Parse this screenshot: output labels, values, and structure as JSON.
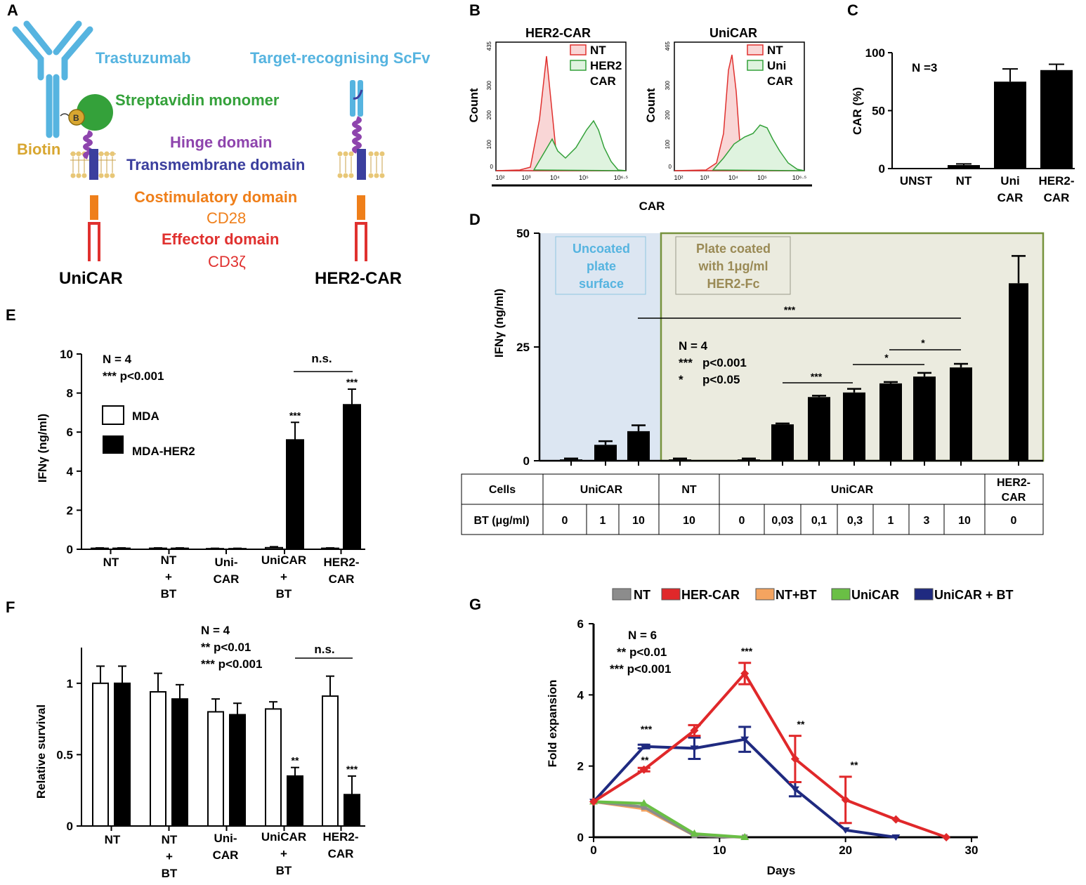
{
  "panel_labels": {
    "A": "A",
    "B": "B",
    "C": "C",
    "D": "D",
    "E": "E",
    "F": "F",
    "G": "G"
  },
  "panelA": {
    "trastuzumab": "Trastuzumab",
    "scfv": "Target-recognising ScFv",
    "streptavidin": "Streptavidin monomer",
    "biotin": "Biotin",
    "biotin_badge": "B",
    "hinge": "Hinge domain",
    "transmembrane": "Transmembrane domain",
    "costim": "Costimulatory domain",
    "cd28": "CD28",
    "effector": "Effector domain",
    "cd3z": "CD3ζ",
    "unicar": "UniCAR",
    "her2car": "HER2-CAR",
    "colors": {
      "antibody": "#56b4e0",
      "streptavidin": "#34a13a",
      "biotin": "#d8a630",
      "hinge": "#8e44ad",
      "transmembrane": "#3b3f9e",
      "costim": "#ef7f1a",
      "effector": "#e0312f",
      "membrane": "#d9b45a"
    }
  },
  "panelB": {
    "count_label": "Count",
    "x_label": "CAR",
    "x_ticks": [
      "10²",
      "10³",
      "10⁴",
      "10⁵",
      "10⁶·⁵"
    ],
    "plots": [
      {
        "title": "HER2-CAR",
        "ymax": "435",
        "legend_nt": "NT",
        "legend_car": [
          "HER2",
          "CAR"
        ]
      },
      {
        "title": "UniCAR",
        "ymax": "465",
        "legend_nt": "NT",
        "legend_car": [
          "Uni",
          "CAR"
        ]
      }
    ],
    "y_ticks": [
      "0",
      "100",
      "200",
      "300"
    ]
  },
  "panelC": {
    "ylabel": "CAR (%)",
    "n_label": "N =3",
    "y_ticks": [
      "0",
      "50",
      "100"
    ],
    "cat_lines": [
      [
        "UNST"
      ],
      [
        "NT"
      ],
      [
        "Uni",
        "CAR"
      ],
      [
        "HER2-",
        "CAR"
      ]
    ]
  },
  "panelD": {
    "ylabel": "IFNγ (ng/ml)",
    "y_ticks": [
      "0",
      "25",
      "50"
    ],
    "box_uncoated": [
      "Uncoated",
      "plate",
      "surface"
    ],
    "box_coated": [
      "Plate coated",
      "with  1μg/ml",
      "HER2-Fc"
    ],
    "stats": {
      "n": "N = 4",
      "p1_star": "***",
      "p1": "p<0.001",
      "p2_star": "*",
      "p2": "p<0.05"
    },
    "sig": [
      "***",
      "***",
      "*",
      "*"
    ],
    "table": {
      "cells_label": "Cells",
      "bt_label": "BT (μg/ml)",
      "groups": [
        "UniCAR",
        "NT",
        "UniCAR"
      ],
      "her2_lines": [
        "HER2-",
        "CAR"
      ],
      "bt_values": [
        "0",
        "1",
        "10",
        "10",
        "0",
        "0,03",
        "0,1",
        "0,3",
        "1",
        "3",
        "10",
        "0"
      ]
    }
  },
  "panelE": {
    "ylabel": "IFNγ (ng/ml)",
    "n_label": "N = 4",
    "p_label": "*** p<0.001",
    "legend": [
      "MDA",
      "MDA-HER2"
    ],
    "y_ticks": [
      "0",
      "2",
      "4",
      "6",
      "8",
      "10"
    ],
    "cat_lines": [
      [
        "NT"
      ],
      [
        "NT",
        "+",
        "BT"
      ],
      [
        "Uni-",
        "CAR"
      ],
      [
        "UniCAR",
        "+",
        "BT"
      ],
      [
        "HER2-",
        "CAR"
      ]
    ],
    "ns": "n.s.",
    "stars": [
      "***",
      "***"
    ]
  },
  "panelF": {
    "ylabel": "Relative survival",
    "n_label": "N = 4",
    "p1": "** p<0.01",
    "p2": "*** p<0.001",
    "y_ticks": [
      "0",
      "0.5",
      "1"
    ],
    "cat_lines": [
      [
        "NT"
      ],
      [
        "NT",
        "+",
        "BT"
      ],
      [
        "Uni-",
        "CAR"
      ],
      [
        "UniCAR",
        "+",
        "BT"
      ],
      [
        "HER2-",
        "CAR"
      ]
    ],
    "ns": "n.s.",
    "stars": [
      "**",
      "***"
    ]
  },
  "panelG": {
    "xlabel": "Days",
    "ylabel": "Fold expansion",
    "n_label": "N = 6",
    "p1": "** p<0.01",
    "p2": "*** p<0.001",
    "x_ticks": [
      "0",
      "10",
      "20",
      "30"
    ],
    "y_ticks": [
      "0",
      "2",
      "4",
      "6"
    ],
    "legend": [
      "NT",
      "HER-CAR",
      "NT+BT",
      "UniCAR",
      "UniCAR + BT"
    ],
    "colors": [
      "#8c8c8c",
      "#e0282a",
      "#f4a460",
      "#6abf45",
      "#1f2a80"
    ],
    "annotations": [
      "***",
      "**",
      "***",
      "**",
      "**"
    ]
  },
  "chart_data": [
    {
      "type": "bar",
      "panel": "C",
      "title": "",
      "ylabel": "CAR (%)",
      "ylim": [
        0,
        100
      ],
      "categories": [
        "UNST",
        "NT",
        "Uni CAR",
        "HER2-CAR"
      ],
      "values": [
        0.5,
        3,
        75,
        85
      ],
      "errors": [
        0,
        1,
        11,
        5
      ]
    },
    {
      "type": "bar",
      "panel": "D",
      "ylabel": "IFNγ (ng/ml)",
      "ylim": [
        0,
        50
      ],
      "categories": [
        "UniCAR 0",
        "UniCAR 1",
        "UniCAR 10",
        "NT 10",
        "UniCAR 0",
        "UniCAR 0,03",
        "UniCAR 0,1",
        "UniCAR 0,3",
        "UniCAR 1",
        "UniCAR 3",
        "UniCAR 10",
        "HER2-CAR 0"
      ],
      "values": [
        0.3,
        3.5,
        6.5,
        0.3,
        0.3,
        8,
        14,
        15,
        17,
        18.5,
        20.5,
        39
      ],
      "errors": [
        0.2,
        0.8,
        1.3,
        0.2,
        0.2,
        0.2,
        0.3,
        0.8,
        0.3,
        0.8,
        0.8,
        6
      ]
    },
    {
      "type": "bar",
      "panel": "E",
      "ylabel": "IFNγ (ng/ml)",
      "ylim": [
        0,
        10
      ],
      "categories": [
        "NT",
        "NT + BT",
        "Uni-CAR",
        "UniCAR + BT",
        "HER2-CAR"
      ],
      "series": [
        {
          "name": "MDA",
          "values": [
            0.05,
            0.05,
            0.03,
            0.08,
            0.05
          ],
          "errors": [
            0.02,
            0.02,
            0.02,
            0.05,
            0.02
          ]
        },
        {
          "name": "MDA-HER2",
          "values": [
            0.05,
            0.05,
            0.03,
            5.6,
            7.4
          ],
          "errors": [
            0.02,
            0.02,
            0.02,
            0.9,
            0.8
          ]
        }
      ]
    },
    {
      "type": "bar",
      "panel": "F",
      "ylabel": "Relative survival",
      "ylim": [
        0,
        1.25
      ],
      "categories": [
        "NT",
        "NT + BT",
        "Uni-CAR",
        "UniCAR + BT",
        "HER2-CAR"
      ],
      "series": [
        {
          "name": "MDA",
          "values": [
            1.0,
            0.94,
            0.8,
            0.82,
            0.91
          ],
          "errors": [
            0.12,
            0.13,
            0.09,
            0.05,
            0.14
          ]
        },
        {
          "name": "MDA-HER2",
          "values": [
            1.0,
            0.89,
            0.78,
            0.35,
            0.22
          ],
          "errors": [
            0.12,
            0.1,
            0.08,
            0.06,
            0.13
          ]
        }
      ]
    },
    {
      "type": "line",
      "panel": "G",
      "xlabel": "Days",
      "ylabel": "Fold expansion",
      "xlim": [
        0,
        30
      ],
      "ylim": [
        0,
        6
      ],
      "series": [
        {
          "name": "NT",
          "x": [
            0,
            4,
            8,
            12
          ],
          "y": [
            1,
            0.85,
            0.05,
            0
          ]
        },
        {
          "name": "HER-CAR",
          "x": [
            0,
            4,
            8,
            12,
            16,
            20,
            24,
            28
          ],
          "y": [
            1,
            1.9,
            3.0,
            4.6,
            2.2,
            1.05,
            0.5,
            0
          ],
          "errors": [
            0,
            0.05,
            0.15,
            0.3,
            0.65,
            0.65,
            0,
            0
          ]
        },
        {
          "name": "NT+BT",
          "x": [
            0,
            4,
            8,
            12
          ],
          "y": [
            1,
            0.8,
            0.05,
            0
          ]
        },
        {
          "name": "UniCAR",
          "x": [
            0,
            4,
            8,
            12
          ],
          "y": [
            1,
            0.95,
            0.1,
            0
          ]
        },
        {
          "name": "UniCAR + BT",
          "x": [
            0,
            4,
            8,
            12,
            16,
            20,
            24
          ],
          "y": [
            1,
            2.55,
            2.5,
            2.75,
            1.35,
            0.2,
            0
          ],
          "errors": [
            0,
            0.05,
            0.3,
            0.35,
            0.2,
            0,
            0
          ]
        }
      ]
    }
  ]
}
